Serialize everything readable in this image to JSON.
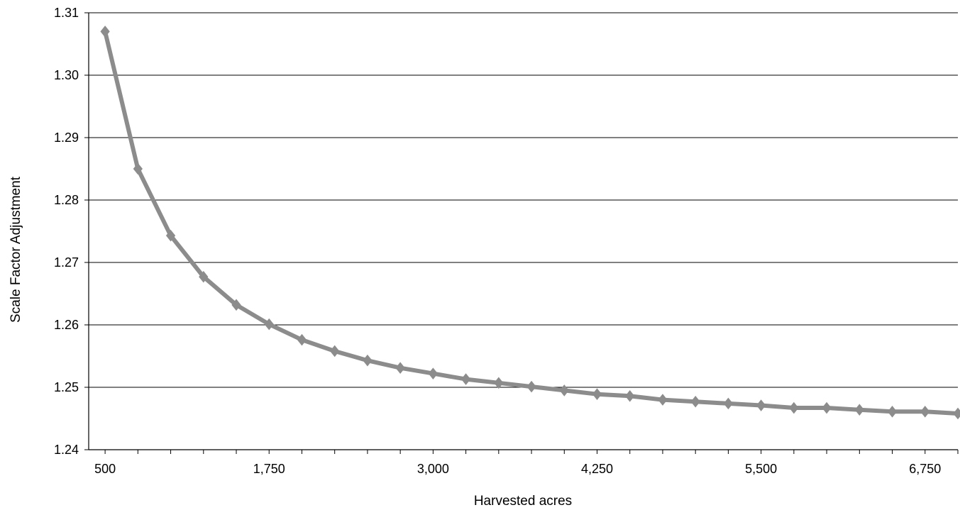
{
  "chart_data": {
    "type": "line",
    "title": "",
    "xlabel": "Harvested acres",
    "ylabel": "Scale Factor Adjustment",
    "xlim": [
      375,
      7000
    ],
    "ylim": [
      1.24,
      1.31
    ],
    "x_ticks": [
      500,
      1750,
      3000,
      4250,
      5500,
      6750
    ],
    "x_tick_labels": [
      "500",
      "1,750",
      "3,000",
      "4,250",
      "5,500",
      "6,750"
    ],
    "y_ticks": [
      1.24,
      1.25,
      1.26,
      1.27,
      1.28,
      1.29,
      1.3,
      1.31
    ],
    "y_tick_labels": [
      "1.24",
      "1.25",
      "1.26",
      "1.27",
      "1.28",
      "1.29",
      "1.30",
      "1.31"
    ],
    "grid": true,
    "legend": "none",
    "line_color": "#8c8c8c",
    "series": [
      {
        "x": [
          500,
          750,
          1000,
          1250,
          1500,
          1750,
          2000,
          2250,
          2500,
          2750,
          3000,
          3250,
          3500,
          3750,
          4000,
          4250,
          4500,
          4750,
          5000,
          5250,
          5500,
          5750,
          6000,
          6250,
          6500,
          6750,
          7000
        ],
        "y": [
          1.307,
          1.285,
          1.2743,
          1.2677,
          1.2632,
          1.2601,
          1.2576,
          1.2558,
          1.2543,
          1.2531,
          1.2522,
          1.2513,
          1.2507,
          1.2501,
          1.2495,
          1.2489,
          1.2486,
          1.248,
          1.2477,
          1.2474,
          1.2471,
          1.2467,
          1.2467,
          1.2464,
          1.2461,
          1.2461,
          1.2458
        ]
      }
    ]
  }
}
